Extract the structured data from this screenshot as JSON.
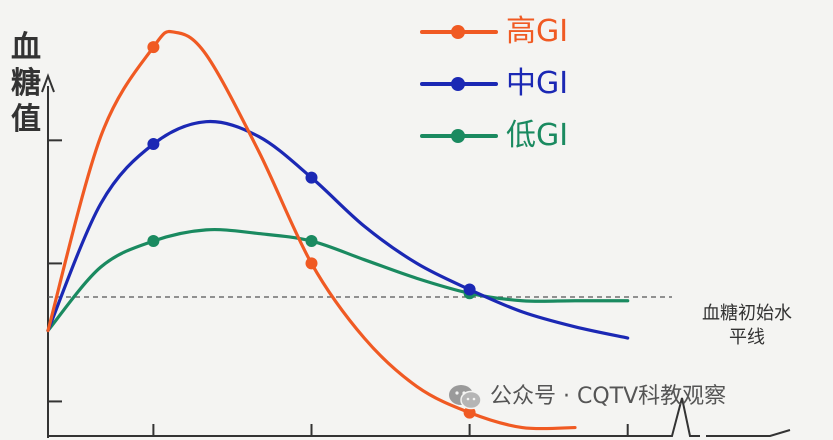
{
  "chart_data": {
    "type": "line",
    "ylabel": "血糖值",
    "xlabel": "",
    "xlim": [
      0,
      10
    ],
    "ylim": [
      0,
      10
    ],
    "x_ticks": [
      2,
      5,
      8,
      11
    ],
    "y_ticks": [
      0.9,
      4.6,
      7.9
    ],
    "baseline": {
      "value": 3.7,
      "label": "血糖初始水平线"
    },
    "series": [
      {
        "name": "高GI",
        "color": "#f05a23",
        "curve": [
          [
            0,
            2.8
          ],
          [
            1,
            8.0
          ],
          [
            2,
            10.4
          ],
          [
            2.4,
            10.8
          ],
          [
            3,
            10.2
          ],
          [
            4,
            7.6
          ],
          [
            5,
            4.6
          ],
          [
            6,
            2.6
          ],
          [
            7,
            1.3
          ],
          [
            8,
            0.6
          ],
          [
            9,
            0.2
          ],
          [
            10,
            0.2
          ]
        ],
        "markers": [
          [
            2,
            10.4
          ],
          [
            5,
            4.6
          ],
          [
            8,
            0.6
          ]
        ]
      },
      {
        "name": "中GI",
        "color": "#1b28b4",
        "curve": [
          [
            0,
            2.8
          ],
          [
            1,
            6.2
          ],
          [
            2,
            7.8
          ],
          [
            3,
            8.4
          ],
          [
            4,
            8.0
          ],
          [
            5,
            6.9
          ],
          [
            6,
            5.6
          ],
          [
            7,
            4.6
          ],
          [
            8,
            3.9
          ],
          [
            9,
            3.3
          ],
          [
            10,
            2.9
          ],
          [
            11,
            2.6
          ]
        ],
        "markers": [
          [
            2,
            7.8
          ],
          [
            5,
            6.9
          ],
          [
            8,
            3.9
          ]
        ]
      },
      {
        "name": "低GI",
        "color": "#1a8a60",
        "curve": [
          [
            0,
            2.8
          ],
          [
            1,
            4.5
          ],
          [
            2,
            5.2
          ],
          [
            3,
            5.5
          ],
          [
            4,
            5.4
          ],
          [
            5,
            5.2
          ],
          [
            6,
            4.7
          ],
          [
            7,
            4.2
          ],
          [
            8,
            3.8
          ],
          [
            9,
            3.6
          ],
          [
            10,
            3.6
          ],
          [
            11,
            3.6
          ]
        ],
        "markers": [
          [
            2,
            5.2
          ],
          [
            5,
            5.2
          ],
          [
            8,
            3.8
          ]
        ]
      }
    ]
  },
  "watermark": {
    "icon": "wechat-icon",
    "text": "公众号 · CQTV科教观察"
  }
}
